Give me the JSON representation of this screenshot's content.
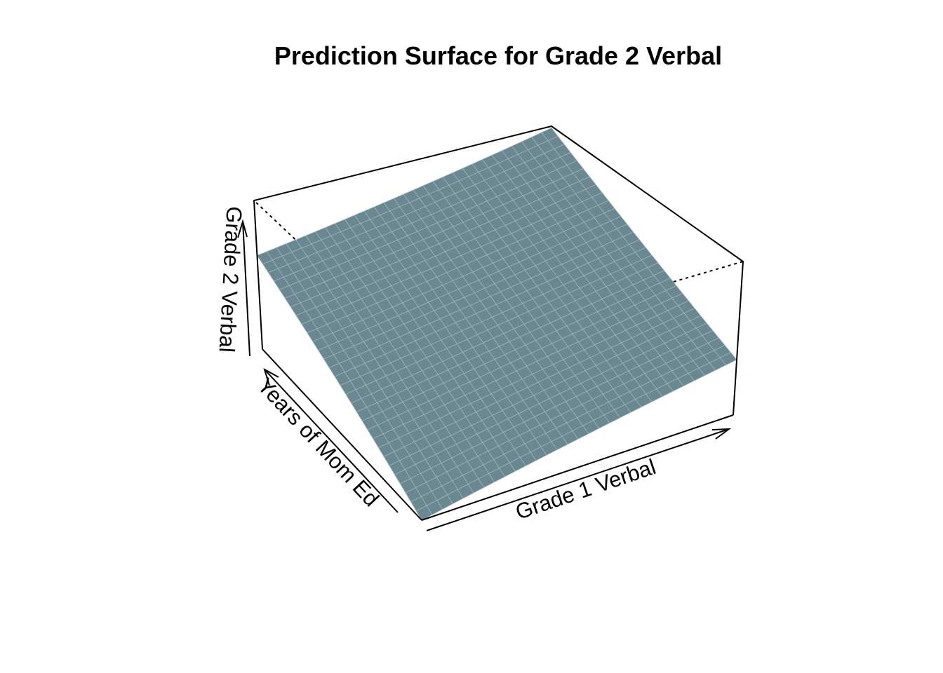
{
  "chart_data": {
    "type": "surface3d",
    "title": "Prediction Surface for Grade 2 Verbal",
    "xlabel": "Grade 1 Verbal",
    "ylabel": "Years of Mom Ed",
    "zlabel": "Grade 2 Verbal",
    "surface_color": "#6b8791",
    "grid_color": "#9fb4bb",
    "grid": {
      "x_cells": 30,
      "y_cells": 30
    },
    "z_range": [
      0,
      1
    ],
    "corners": {
      "x_min_y_min": 0.0,
      "x_max_y_min": 0.36,
      "x_min_y_max": 0.63,
      "x_max_y_max": 0.99
    }
  }
}
